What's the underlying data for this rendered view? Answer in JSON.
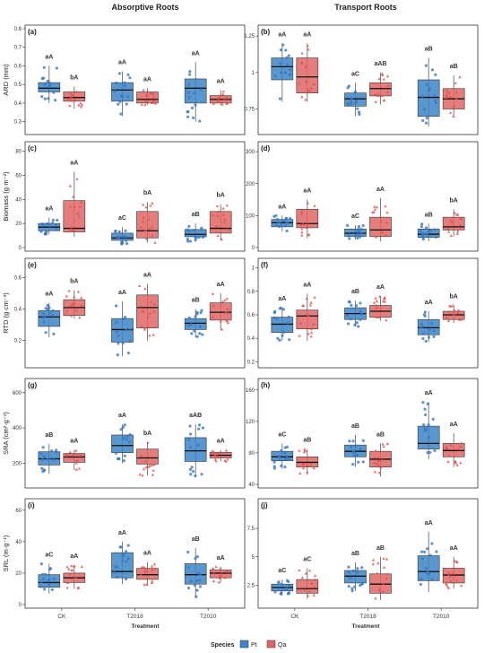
{
  "column_titles": [
    "Absorptive Roots",
    "Transport Roots"
  ],
  "xlabel": "Treatment",
  "legend": {
    "title": "Species",
    "items": [
      {
        "label": "Pt",
        "color": "#3d85c6"
      },
      {
        "label": "Qa",
        "color": "#e06666"
      }
    ]
  },
  "colors": {
    "Pt": "#3d85c6",
    "Qa": "#e06666",
    "Pt_point": "#3a78c0",
    "Qa_point": "#d9534f"
  },
  "chart_data": [
    {
      "type": "box",
      "tag": "(a)",
      "ylabel": "ARD (mm)",
      "categories": [
        "CK",
        "T2018",
        "T2010"
      ],
      "yrange": [
        0.25,
        0.8
      ],
      "yticks": [
        0.3,
        0.4,
        0.5,
        0.6,
        0.7,
        0.8
      ],
      "series": [
        {
          "name": "Pt",
          "boxes": [
            {
              "min": 0.4,
              "q1": 0.46,
              "median": 0.48,
              "q3": 0.51,
              "max": 0.6,
              "label": "aA"
            },
            {
              "min": 0.33,
              "q1": 0.41,
              "median": 0.47,
              "q3": 0.51,
              "max": 0.57,
              "label": "aA"
            },
            {
              "min": 0.3,
              "q1": 0.4,
              "median": 0.48,
              "q3": 0.53,
              "max": 0.62,
              "label": "aA"
            }
          ]
        },
        {
          "name": "Qa",
          "boxes": [
            {
              "min": 0.37,
              "q1": 0.41,
              "median": 0.43,
              "q3": 0.46,
              "max": 0.49,
              "label": "bA"
            },
            {
              "min": 0.39,
              "q1": 0.4,
              "median": 0.42,
              "q3": 0.46,
              "max": 0.48,
              "label": "aA"
            },
            {
              "min": 0.39,
              "q1": 0.4,
              "median": 0.42,
              "q3": 0.44,
              "max": 0.47,
              "label": "aA"
            }
          ]
        }
      ]
    },
    {
      "type": "box",
      "tag": "(b)",
      "ylabel": "",
      "categories": [
        "CK",
        "T2018",
        "T2010"
      ],
      "yrange": [
        0.6,
        1.3
      ],
      "yticks": [
        0.75,
        1.0,
        1.25
      ],
      "series": [
        {
          "name": "Pt",
          "boxes": [
            {
              "min": 0.8,
              "q1": 0.95,
              "median": 1.04,
              "q3": 1.1,
              "max": 1.2,
              "label": "aA"
            },
            {
              "min": 0.7,
              "q1": 0.77,
              "median": 0.82,
              "q3": 0.86,
              "max": 0.93,
              "label": "aC"
            },
            {
              "min": 0.63,
              "q1": 0.7,
              "median": 0.83,
              "q3": 0.95,
              "max": 1.1,
              "label": "aB"
            }
          ]
        },
        {
          "name": "Qa",
          "boxes": [
            {
              "min": 0.8,
              "q1": 0.86,
              "median": 0.97,
              "q3": 1.1,
              "max": 1.2,
              "label": "aA"
            },
            {
              "min": 0.78,
              "q1": 0.84,
              "median": 0.89,
              "q3": 0.93,
              "max": 1.0,
              "label": "aAB"
            },
            {
              "min": 0.7,
              "q1": 0.75,
              "median": 0.82,
              "q3": 0.89,
              "max": 0.98,
              "label": "aB"
            }
          ]
        }
      ]
    },
    {
      "type": "box",
      "tag": "(c)",
      "ylabel": "Biomass (g·m⁻²)",
      "categories": [
        "CK",
        "T2018",
        "T2010"
      ],
      "yrange": [
        0,
        85
      ],
      "yticks": [
        0,
        20,
        40,
        60,
        80
      ],
      "series": [
        {
          "name": "Pt",
          "boxes": [
            {
              "min": 11,
              "q1": 14,
              "median": 17,
              "q3": 20,
              "max": 25,
              "label": "aA"
            },
            {
              "min": 3,
              "q1": 6,
              "median": 8,
              "q3": 12,
              "max": 17,
              "label": "aC"
            },
            {
              "min": 5,
              "q1": 9,
              "median": 11,
              "q3": 15,
              "max": 20,
              "label": "aB"
            }
          ]
        },
        {
          "name": "Qa",
          "boxes": [
            {
              "min": 9,
              "q1": 13,
              "median": 16,
              "q3": 39,
              "max": 63,
              "label": "aA"
            },
            {
              "min": 4,
              "q1": 8,
              "median": 14,
              "q3": 30,
              "max": 38,
              "label": "bA"
            },
            {
              "min": 6,
              "q1": 12,
              "median": 16,
              "q3": 30,
              "max": 36,
              "label": "bA"
            }
          ]
        }
      ]
    },
    {
      "type": "box",
      "tag": "(d)",
      "ylabel": "",
      "categories": [
        "CK",
        "T2018",
        "T2010"
      ],
      "yrange": [
        0,
        320
      ],
      "yticks": [
        0,
        100,
        200,
        300
      ],
      "series": [
        {
          "name": "Pt",
          "boxes": [
            {
              "min": 50,
              "q1": 65,
              "median": 78,
              "q3": 88,
              "max": 100,
              "label": "aA"
            },
            {
              "min": 25,
              "q1": 35,
              "median": 45,
              "q3": 58,
              "max": 70,
              "label": "aC"
            },
            {
              "min": 20,
              "q1": 32,
              "median": 42,
              "q3": 58,
              "max": 75,
              "label": "aB"
            }
          ]
        },
        {
          "name": "Qa",
          "boxes": [
            {
              "min": 30,
              "q1": 62,
              "median": 75,
              "q3": 120,
              "max": 150,
              "label": "aA"
            },
            {
              "min": 20,
              "q1": 35,
              "median": 55,
              "q3": 95,
              "max": 155,
              "label": "aA"
            },
            {
              "min": 35,
              "q1": 55,
              "median": 65,
              "q3": 95,
              "max": 120,
              "label": "bA"
            }
          ]
        }
      ]
    },
    {
      "type": "box",
      "tag": "(e)",
      "ylabel": "RTD (g·cm⁻³)",
      "categories": [
        "CK",
        "T2018",
        "T2010"
      ],
      "yrange": [
        0.05,
        0.7
      ],
      "yticks": [
        0.2,
        0.4,
        0.6
      ],
      "series": [
        {
          "name": "Pt",
          "boxes": [
            {
              "min": 0.22,
              "q1": 0.29,
              "median": 0.35,
              "q3": 0.39,
              "max": 0.44,
              "label": "aA"
            },
            {
              "min": 0.1,
              "q1": 0.19,
              "median": 0.27,
              "q3": 0.34,
              "max": 0.45,
              "label": "aA"
            },
            {
              "min": 0.22,
              "q1": 0.27,
              "median": 0.31,
              "q3": 0.34,
              "max": 0.4,
              "label": "aB"
            }
          ]
        },
        {
          "name": "Qa",
          "boxes": [
            {
              "min": 0.34,
              "q1": 0.36,
              "median": 0.41,
              "q3": 0.46,
              "max": 0.52,
              "label": "bA"
            },
            {
              "min": 0.2,
              "q1": 0.28,
              "median": 0.41,
              "q3": 0.49,
              "max": 0.56,
              "label": "aA"
            },
            {
              "min": 0.27,
              "q1": 0.33,
              "median": 0.38,
              "q3": 0.44,
              "max": 0.5,
              "label": "aA"
            }
          ]
        }
      ]
    },
    {
      "type": "box",
      "tag": "(f)",
      "ylabel": "",
      "categories": [
        "CK",
        "T2018",
        "T2010"
      ],
      "yrange": [
        0.18,
        1.05
      ],
      "yticks": [
        0.2,
        0.4,
        0.6,
        0.8,
        1.0
      ],
      "series": [
        {
          "name": "Pt",
          "boxes": [
            {
              "min": 0.38,
              "q1": 0.45,
              "median": 0.52,
              "q3": 0.58,
              "max": 0.66,
              "label": "aA"
            },
            {
              "min": 0.5,
              "q1": 0.56,
              "median": 0.61,
              "q3": 0.66,
              "max": 0.72,
              "label": "aB"
            },
            {
              "min": 0.37,
              "q1": 0.43,
              "median": 0.49,
              "q3": 0.56,
              "max": 0.63,
              "label": "aA"
            }
          ]
        },
        {
          "name": "Qa",
          "boxes": [
            {
              "min": 0.38,
              "q1": 0.48,
              "median": 0.59,
              "q3": 0.64,
              "max": 0.78,
              "label": "aA"
            },
            {
              "min": 0.55,
              "q1": 0.58,
              "median": 0.63,
              "q3": 0.68,
              "max": 0.76,
              "label": "aA"
            },
            {
              "min": 0.53,
              "q1": 0.56,
              "median": 0.6,
              "q3": 0.63,
              "max": 0.68,
              "label": "bA"
            }
          ]
        }
      ]
    },
    {
      "type": "box",
      "tag": "(g)",
      "ylabel": "SRA (cm²·g⁻¹)",
      "categories": [
        "CK",
        "T2018",
        "T2010"
      ],
      "yrange": [
        80,
        660
      ],
      "yticks": [
        200,
        400,
        600
      ],
      "series": [
        {
          "name": "Pt",
          "boxes": [
            {
              "min": 140,
              "q1": 190,
              "median": 225,
              "q3": 265,
              "max": 310,
              "label": "aB"
            },
            {
              "min": 200,
              "q1": 260,
              "median": 300,
              "q3": 360,
              "max": 420,
              "label": "aA"
            },
            {
              "min": 120,
              "q1": 210,
              "median": 270,
              "q3": 345,
              "max": 420,
              "label": "aAB"
            }
          ]
        },
        {
          "name": "Qa",
          "boxes": [
            {
              "min": 160,
              "q1": 205,
              "median": 235,
              "q3": 255,
              "max": 275,
              "label": "aA"
            },
            {
              "min": 130,
              "q1": 195,
              "median": 230,
              "q3": 280,
              "max": 320,
              "label": "bA"
            },
            {
              "min": 210,
              "q1": 230,
              "median": 245,
              "q3": 262,
              "max": 275,
              "label": "aA"
            }
          ]
        }
      ]
    },
    {
      "type": "box",
      "tag": "(h)",
      "ylabel": "",
      "categories": [
        "CK",
        "T2018",
        "T2010"
      ],
      "yrange": [
        40,
        170
      ],
      "yticks": [
        40,
        80,
        120,
        160
      ],
      "series": [
        {
          "name": "Pt",
          "boxes": [
            {
              "min": 60,
              "q1": 70,
              "median": 75,
              "q3": 82,
              "max": 92,
              "label": "aC"
            },
            {
              "min": 62,
              "q1": 75,
              "median": 82,
              "q3": 90,
              "max": 103,
              "label": "aB"
            },
            {
              "min": 72,
              "q1": 85,
              "median": 92,
              "q3": 114,
              "max": 145,
              "label": "aA"
            }
          ]
        },
        {
          "name": "Qa",
          "boxes": [
            {
              "min": 52,
              "q1": 62,
              "median": 68,
              "q3": 75,
              "max": 85,
              "label": "aB"
            },
            {
              "min": 50,
              "q1": 62,
              "median": 72,
              "q3": 82,
              "max": 92,
              "label": "aB"
            },
            {
              "min": 62,
              "q1": 75,
              "median": 83,
              "q3": 92,
              "max": 105,
              "label": "aA"
            }
          ]
        }
      ]
    },
    {
      "type": "box",
      "tag": "(i)",
      "ylabel": "SRL (m·g⁻¹)",
      "categories": [
        "CK",
        "T2018",
        "T2010"
      ],
      "yrange": [
        0,
        65
      ],
      "yticks": [
        0,
        20,
        40,
        60
      ],
      "series": [
        {
          "name": "Pt",
          "boxes": [
            {
              "min": 7,
              "q1": 11,
              "median": 14,
              "q3": 19,
              "max": 26,
              "label": "aC"
            },
            {
              "min": 13,
              "q1": 17,
              "median": 21,
              "q3": 33,
              "max": 40,
              "label": "aA"
            },
            {
              "min": 4,
              "q1": 13,
              "median": 19,
              "q3": 26,
              "max": 36,
              "label": "aB"
            }
          ]
        },
        {
          "name": "Qa",
          "boxes": [
            {
              "min": 10,
              "q1": 14,
              "median": 17,
              "q3": 20,
              "max": 25,
              "label": "aA"
            },
            {
              "min": 12,
              "q1": 16,
              "median": 19,
              "q3": 23,
              "max": 27,
              "label": "aA"
            },
            {
              "min": 14,
              "q1": 17,
              "median": 20,
              "q3": 22,
              "max": 24,
              "label": "aA"
            }
          ]
        }
      ]
    },
    {
      "type": "box",
      "tag": "(j)",
      "ylabel": "",
      "categories": [
        "CK",
        "T2018",
        "T2010"
      ],
      "yrange": [
        0.8,
        9.8
      ],
      "yticks": [
        2.5,
        5.0,
        7.5
      ],
      "series": [
        {
          "name": "Pt",
          "boxes": [
            {
              "min": 1.6,
              "q1": 2.0,
              "median": 2.3,
              "q3": 2.6,
              "max": 3.0,
              "label": "aC"
            },
            {
              "min": 2.0,
              "q1": 2.7,
              "median": 3.3,
              "q3": 3.8,
              "max": 4.5,
              "label": "aB"
            },
            {
              "min": 1.9,
              "q1": 2.9,
              "median": 3.7,
              "q3": 5.1,
              "max": 7.2,
              "label": "aA"
            }
          ]
        },
        {
          "name": "Qa",
          "boxes": [
            {
              "min": 1.3,
              "q1": 1.8,
              "median": 2.2,
              "q3": 3.0,
              "max": 4.0,
              "label": "aC"
            },
            {
              "min": 1.2,
              "q1": 1.8,
              "median": 2.6,
              "q3": 3.5,
              "max": 5.0,
              "label": "aB"
            },
            {
              "min": 2.2,
              "q1": 2.7,
              "median": 3.4,
              "q3": 4.0,
              "max": 5.0,
              "label": "aA"
            }
          ]
        }
      ]
    }
  ]
}
